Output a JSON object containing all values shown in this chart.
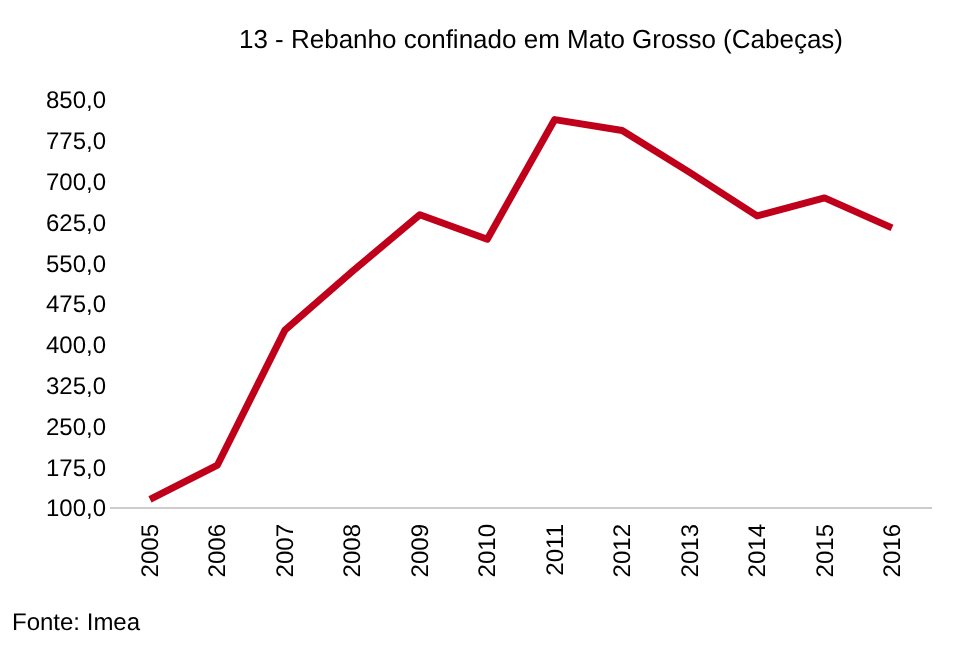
{
  "chart_data": {
    "type": "line",
    "title": "13 - Rebanho confinado em Mato Grosso (Cabeças)",
    "categories": [
      "2005",
      "2006",
      "2007",
      "2008",
      "2009",
      "2010",
      "2011",
      "2012",
      "2013",
      "2014",
      "2015",
      "2016"
    ],
    "series": [
      {
        "color": "#c0001a",
        "values": [
          116,
          179,
          427,
          535,
          639,
          594,
          814,
          794,
          717,
          637,
          670,
          615
        ]
      }
    ],
    "ylim": [
      100,
      850
    ],
    "yticks": [
      {
        "value": 100,
        "label": "100,0"
      },
      {
        "value": 175,
        "label": "175,0"
      },
      {
        "value": 250,
        "label": "250,0"
      },
      {
        "value": 325,
        "label": "325,0"
      },
      {
        "value": 400,
        "label": "400,0"
      },
      {
        "value": 475,
        "label": "475,0"
      },
      {
        "value": 550,
        "label": "550,0"
      },
      {
        "value": 625,
        "label": "625,0"
      },
      {
        "value": 700,
        "label": "700,0"
      },
      {
        "value": 775,
        "label": "775,0"
      },
      {
        "value": 850,
        "label": "850,0"
      }
    ],
    "marker": "none",
    "line_style": "solid",
    "annotations": [
      "Fonte: Imea"
    ]
  }
}
